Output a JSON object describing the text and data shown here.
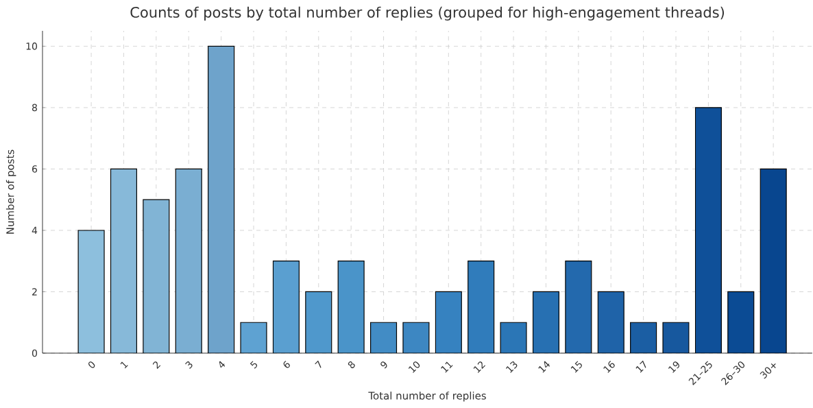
{
  "chart_data": {
    "type": "bar",
    "title": "Counts of posts by total number of replies (grouped for high-engagement threads)",
    "xlabel": "Total number of replies",
    "ylabel": "Number of posts",
    "categories": [
      "0",
      "1",
      "2",
      "3",
      "4",
      "5",
      "6",
      "7",
      "8",
      "9",
      "10",
      "11",
      "12",
      "13",
      "14",
      "15",
      "16",
      "17",
      "19",
      "21–25",
      "26–30",
      "30+"
    ],
    "values": [
      4,
      6,
      5,
      6,
      10,
      1,
      3,
      2,
      3,
      1,
      1,
      2,
      3,
      1,
      2,
      3,
      2,
      1,
      1,
      8,
      2,
      6
    ],
    "colors": [
      "#8dbfdd",
      "#87b9d9",
      "#81b4d5",
      "#7aaed2",
      "#6ea3cb",
      "#5ea2d2",
      "#5a9fd0",
      "#4f98cc",
      "#4a94c9",
      "#428cc5",
      "#3d87c2",
      "#3682c0",
      "#307cbb",
      "#2b76b6",
      "#2770b2",
      "#2369ad",
      "#1f63a8",
      "#1b5ea3",
      "#17589e",
      "#0f5099",
      "#0b4b94",
      "#08468f"
    ],
    "ylim": [
      0,
      10.5
    ],
    "yticks": [
      0,
      2,
      4,
      6,
      8,
      10
    ],
    "grid": true
  }
}
